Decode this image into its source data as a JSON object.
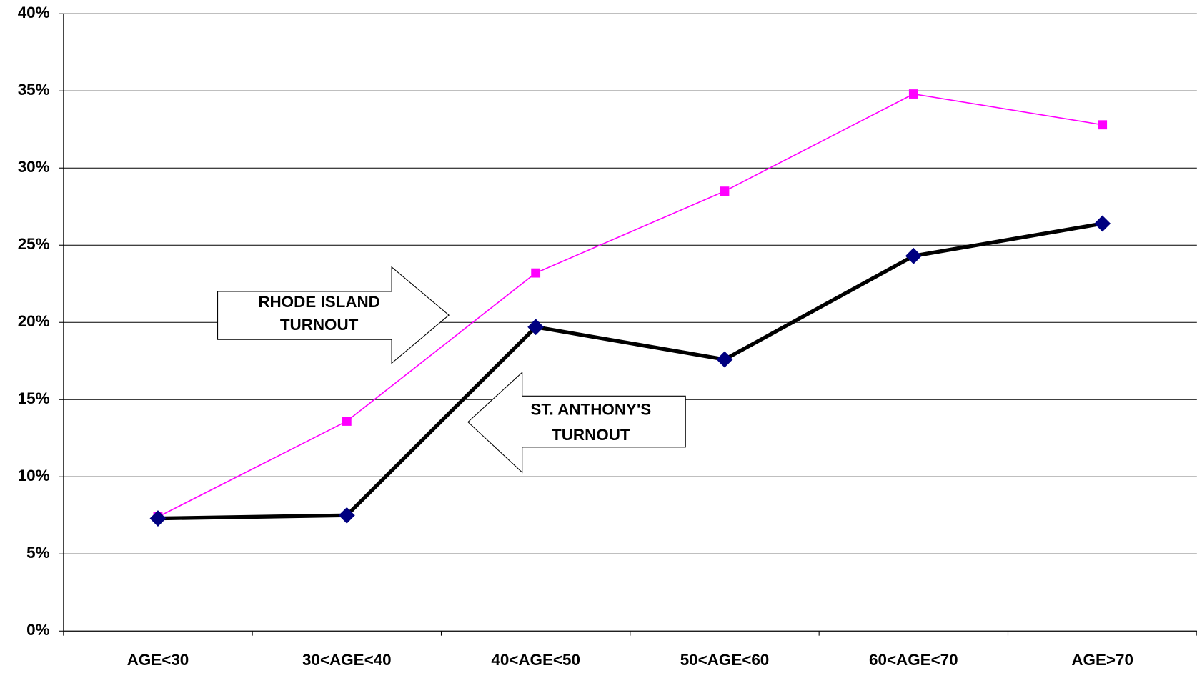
{
  "chart_data": {
    "type": "line",
    "categories": [
      "AGE<30",
      "30<AGE<40",
      "40<AGE<50",
      "50<AGE<60",
      "60<AGE<70",
      "AGE>70"
    ],
    "series": [
      {
        "color": "#ff00ff",
        "values": [
          7.4,
          13.6,
          23.2,
          28.5,
          34.8,
          32.8
        ]
      },
      {
        "color": "#000000",
        "values": [
          7.3,
          7.5,
          19.7,
          17.6,
          24.3,
          26.4
        ]
      }
    ],
    "ylim": [
      0,
      40
    ],
    "yticks": [
      {
        "value": 0,
        "label": "0%"
      },
      {
        "value": 5,
        "label": "5%"
      },
      {
        "value": 10,
        "label": "10%"
      },
      {
        "value": 15,
        "label": "15%"
      },
      {
        "value": 20,
        "label": "20%"
      },
      {
        "value": 25,
        "label": "25%"
      },
      {
        "value": 30,
        "label": "30%"
      },
      {
        "value": 35,
        "label": "35%"
      },
      {
        "value": 40,
        "label": "40%"
      }
    ],
    "grid": true,
    "annotations": [
      [
        "RHODE ISLAND",
        "TURNOUT"
      ],
      [
        "ST. ANTHONY'S",
        "TURNOUT"
      ]
    ]
  }
}
